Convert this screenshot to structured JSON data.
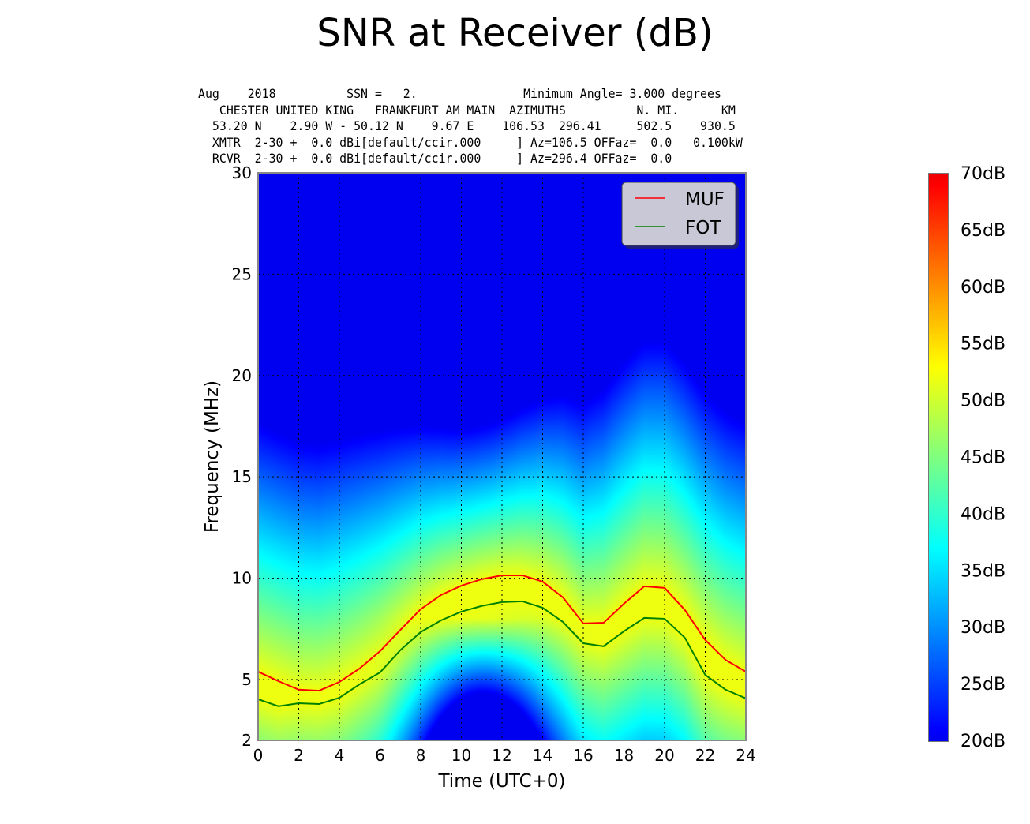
{
  "title": "SNR at Receiver (dB)",
  "header_lines": [
    "Aug    2018          SSN =   2.               Minimum Angle= 3.000 degrees",
    "   CHESTER UNITED KING   FRANKFURT AM MAIN  AZIMUTHS          N. MI.      KM",
    "  53.20 N    2.90 W - 50.12 N    9.67 E    106.53  296.41     502.5    930.5",
    "  XMTR  2-30 +  0.0 dBi[default/ccir.000     ] Az=106.5 OFFaz=  0.0   0.100kW",
    "  RCVR  2-30 +  0.0 dBi[default/ccir.000     ] Az=296.4 OFFaz=  0.0"
  ],
  "chart_data": {
    "type": "heatmap",
    "title": "SNR at Receiver (dB)",
    "xlabel": "Time (UTC+0)",
    "ylabel": "Frequency (MHz)",
    "xlim": [
      0,
      24
    ],
    "ylim": [
      2,
      30
    ],
    "xticks": [
      "0",
      "2",
      "4",
      "6",
      "8",
      "10",
      "12",
      "14",
      "16",
      "18",
      "20",
      "22",
      "24"
    ],
    "yticks": [
      "2",
      "5",
      "10",
      "15",
      "20",
      "25",
      "30"
    ],
    "grid": true,
    "legend_position": "top-right",
    "colorbar": {
      "min": 20,
      "max": 70,
      "colormap": "jet",
      "tick_labels": [
        "20dB",
        "25dB",
        "30dB",
        "35dB",
        "40dB",
        "45dB",
        "50dB",
        "55dB",
        "60dB",
        "65dB",
        "70dB"
      ]
    },
    "x": [
      0,
      1,
      2,
      3,
      4,
      5,
      6,
      7,
      8,
      9,
      10,
      11,
      12,
      13,
      14,
      15,
      16,
      17,
      18,
      19,
      20,
      21,
      22,
      23,
      24
    ],
    "series": [
      {
        "name": "MUF",
        "color": "#ff0000",
        "values": [
          5.39,
          4.92,
          4.5,
          4.45,
          4.88,
          5.55,
          6.4,
          7.45,
          8.47,
          9.17,
          9.63,
          9.95,
          10.14,
          10.14,
          9.83,
          9.05,
          7.77,
          7.8,
          8.74,
          9.6,
          9.52,
          8.43,
          6.95,
          5.97,
          5.39
        ]
      },
      {
        "name": "FOT",
        "color": "#008000",
        "values": [
          4.03,
          3.68,
          3.83,
          3.79,
          4.1,
          4.77,
          5.35,
          6.45,
          7.34,
          7.92,
          8.35,
          8.63,
          8.82,
          8.86,
          8.54,
          7.84,
          6.79,
          6.64,
          7.38,
          8.04,
          8.0,
          7.06,
          5.23,
          4.5,
          4.07
        ]
      }
    ]
  }
}
